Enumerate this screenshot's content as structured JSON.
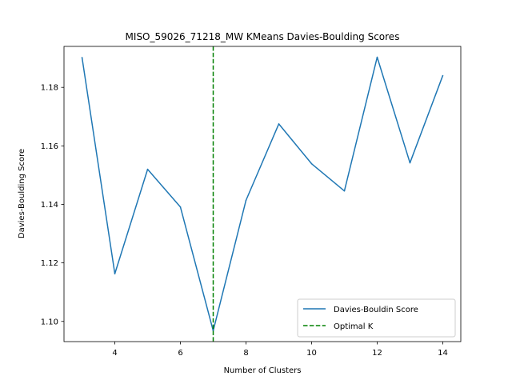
{
  "chart_data": {
    "type": "line",
    "title": "MISO_59026_71218_MW KMeans Davies-Boulding Scores",
    "xlabel": "Number of Clusters",
    "ylabel": "Davies-Boulding Score",
    "x": [
      3,
      4,
      5,
      6,
      7,
      8,
      9,
      10,
      11,
      12,
      13,
      14
    ],
    "series": [
      {
        "name": "Davies-Bouldin Score",
        "color": "#1f77b4",
        "values": [
          1.1902,
          1.1163,
          1.152,
          1.1391,
          1.0968,
          1.1414,
          1.1675,
          1.1539,
          1.1446,
          1.1903,
          1.1542,
          1.184
        ]
      }
    ],
    "vline": {
      "name": "Optimal K",
      "x": 7,
      "color": "#008000",
      "style": "dashed"
    },
    "xlim": [
      2.45,
      14.55
    ],
    "ylim": [
      1.0931,
      1.194
    ],
    "xticks": [
      4,
      6,
      8,
      10,
      12,
      14
    ],
    "yticks": [
      1.1,
      1.12,
      1.14,
      1.16,
      1.18
    ],
    "ytick_labels": [
      "1.10",
      "1.12",
      "1.14",
      "1.16",
      "1.18"
    ],
    "grid": false,
    "legend_placement": "lower-right"
  }
}
